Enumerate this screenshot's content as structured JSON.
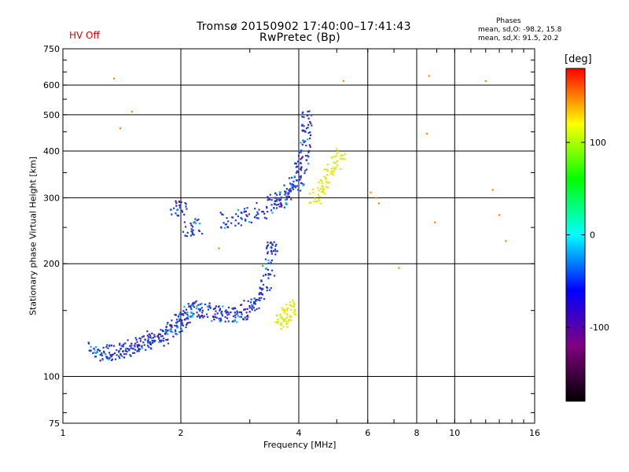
{
  "header": {
    "title_line1": "Tromsø 20150902 17:40:00–17:41:43",
    "title_line2": "RwPretec (Bp)",
    "status": "HV Off"
  },
  "phases": {
    "title": "Phases",
    "o_line": "mean, sd,O: -98.2, 15.8",
    "x_line": "mean, sd,X:  91.5, 20.2"
  },
  "chart_data": {
    "type": "scatter",
    "xlabel": "Frequency [MHz]",
    "ylabel": "Stationary phase Virtual Height [km]",
    "xscale": "log",
    "yscale": "log",
    "xlim": [
      1,
      16
    ],
    "ylim": [
      75,
      750
    ],
    "xticks": [
      1,
      2,
      4,
      6,
      8,
      10,
      16
    ],
    "yticks": [
      75,
      100,
      200,
      300,
      400,
      500,
      600,
      750
    ],
    "grid": true,
    "colorbar": {
      "label": "[deg]",
      "range": [
        -180,
        180
      ],
      "ticks": [
        100,
        0,
        -100
      ],
      "colors": [
        "#000000",
        "#800080",
        "#0000ff",
        "#00ffff",
        "#00ff00",
        "#ffff00",
        "#ff0000"
      ]
    },
    "series": [
      {
        "name": "O-mode trace (low)",
        "color": "#1e3cdc",
        "points": [
          [
            1.2,
            118
          ],
          [
            1.25,
            115
          ],
          [
            1.3,
            117
          ],
          [
            1.35,
            116
          ],
          [
            1.4,
            117
          ],
          [
            1.45,
            118
          ],
          [
            1.5,
            120
          ],
          [
            1.55,
            121
          ],
          [
            1.6,
            123
          ],
          [
            1.65,
            124
          ],
          [
            1.7,
            126
          ],
          [
            1.75,
            127
          ],
          [
            1.8,
            129
          ],
          [
            1.85,
            131
          ],
          [
            1.9,
            135
          ],
          [
            1.95,
            138
          ],
          [
            2.0,
            142
          ],
          [
            2.05,
            145
          ],
          [
            2.1,
            148
          ],
          [
            2.15,
            150
          ],
          [
            2.2,
            152
          ],
          [
            2.3,
            150
          ],
          [
            2.4,
            148
          ],
          [
            2.5,
            147
          ],
          [
            2.6,
            146
          ],
          [
            2.7,
            146
          ],
          [
            2.8,
            147
          ],
          [
            2.9,
            149
          ],
          [
            3.0,
            152
          ],
          [
            3.1,
            158
          ],
          [
            3.2,
            166
          ],
          [
            3.3,
            178
          ],
          [
            3.35,
            195
          ],
          [
            3.4,
            215
          ],
          [
            3.42,
            222
          ]
        ]
      },
      {
        "name": "O-mode trace (high)",
        "color": "#1e3cdc",
        "points": [
          [
            1.95,
            283
          ],
          [
            2.0,
            280
          ],
          [
            2.1,
            248
          ],
          [
            2.2,
            252
          ],
          [
            2.6,
            262
          ],
          [
            2.8,
            266
          ],
          [
            3.0,
            270
          ],
          [
            3.2,
            278
          ],
          [
            3.4,
            288
          ],
          [
            3.5,
            292
          ],
          [
            3.6,
            296
          ],
          [
            3.7,
            302
          ],
          [
            3.8,
            312
          ],
          [
            3.9,
            325
          ],
          [
            4.0,
            338
          ],
          [
            4.05,
            355
          ],
          [
            4.1,
            380
          ],
          [
            4.15,
            410
          ],
          [
            4.18,
            450
          ],
          [
            4.2,
            490
          ]
        ]
      },
      {
        "name": "X-mode trace",
        "color": "#e6e600",
        "points": [
          [
            3.6,
            140
          ],
          [
            3.65,
            142
          ],
          [
            3.7,
            145
          ],
          [
            3.75,
            147
          ],
          [
            3.8,
            150
          ],
          [
            3.85,
            152
          ],
          [
            4.4,
            302
          ],
          [
            4.5,
            308
          ],
          [
            4.6,
            318
          ],
          [
            4.7,
            330
          ],
          [
            4.8,
            345
          ],
          [
            4.9,
            360
          ],
          [
            5.0,
            375
          ],
          [
            5.1,
            390
          ]
        ]
      },
      {
        "name": "Scattered echoes",
        "color": "#ff8800",
        "points": [
          [
            1.35,
            625
          ],
          [
            1.4,
            460
          ],
          [
            1.5,
            510
          ],
          [
            2.5,
            220
          ],
          [
            5.2,
            615
          ],
          [
            6.1,
            310
          ],
          [
            6.3,
            300
          ],
          [
            6.4,
            290
          ],
          [
            7.2,
            195
          ],
          [
            8.5,
            445
          ],
          [
            8.6,
            635
          ],
          [
            8.9,
            258
          ],
          [
            12.0,
            615
          ],
          [
            12.5,
            315
          ],
          [
            13.0,
            270
          ],
          [
            13.5,
            230
          ]
        ]
      }
    ]
  }
}
